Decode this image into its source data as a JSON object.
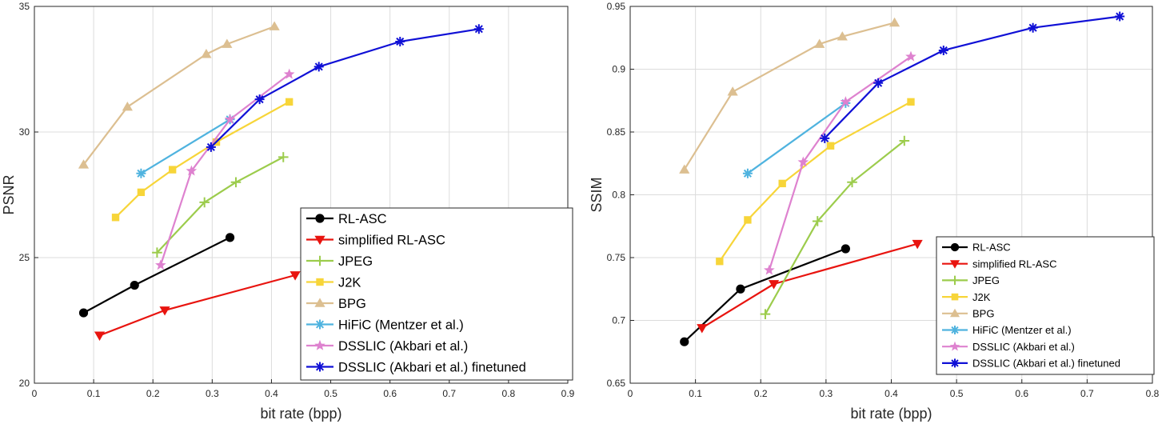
{
  "colors": {
    "RL-ASC": "#000000",
    "simplified RL-ASC": "#e8140f",
    "JPEG": "#9ccc4c",
    "J2K": "#f7d539",
    "BPG": "#dcbf91",
    "HiFiC": "#4fb3df",
    "DSSLIC": "#de82cf",
    "DSSLIC finetuned": "#1010d6",
    "grid": "#dcdcdc"
  },
  "chart_data": [
    {
      "type": "line",
      "xlabel": "bit rate (bpp)",
      "ylabel": "PSNR",
      "xlim": [
        0,
        0.9
      ],
      "ylim": [
        20,
        35
      ],
      "xticks": [
        "0",
        "0.1",
        "0.2",
        "0.3",
        "0.4",
        "0.5",
        "0.6",
        "0.7",
        "0.8",
        "0.9"
      ],
      "yticks": [
        "20",
        "25",
        "30",
        "35"
      ],
      "grid": true,
      "legend_position": "bottom-right",
      "series": [
        {
          "name": "RL-ASC",
          "marker": "circle",
          "x": [
            0.083,
            0.169,
            0.33
          ],
          "y": [
            22.8,
            23.9,
            25.8
          ]
        },
        {
          "name": "simplified RL-ASC",
          "marker": "triangle-down",
          "x": [
            0.11,
            0.22,
            0.44
          ],
          "y": [
            21.9,
            22.9,
            24.3
          ]
        },
        {
          "name": "JPEG",
          "marker": "plus",
          "x": [
            0.207,
            0.287,
            0.34,
            0.42
          ],
          "y": [
            25.2,
            27.2,
            28.0,
            29.0
          ]
        },
        {
          "name": "J2K",
          "marker": "square",
          "x": [
            0.137,
            0.18,
            0.233,
            0.307,
            0.43
          ],
          "y": [
            26.6,
            27.6,
            28.5,
            29.6,
            31.2
          ]
        },
        {
          "name": "BPG",
          "marker": "triangle-up",
          "x": [
            0.083,
            0.157,
            0.29,
            0.325,
            0.405
          ],
          "y": [
            28.7,
            31.0,
            33.1,
            33.5,
            34.2
          ]
        },
        {
          "name": "HiFiC (Mentzer et al.)",
          "marker": "asterisk",
          "x": [
            0.18,
            0.33
          ],
          "y": [
            28.35,
            30.5
          ]
        },
        {
          "name": "DSSLIC (Akbari et al.)",
          "marker": "star",
          "x": [
            0.213,
            0.265,
            0.33,
            0.43
          ],
          "y": [
            24.7,
            28.45,
            30.5,
            32.3
          ]
        },
        {
          "name": "DSSLIC (Akbari et al.) finetuned",
          "marker": "asterisk",
          "x": [
            0.298,
            0.38,
            0.48,
            0.617,
            0.75
          ],
          "y": [
            29.4,
            31.3,
            32.6,
            33.6,
            34.1
          ]
        }
      ]
    },
    {
      "type": "line",
      "xlabel": "bit rate (bpp)",
      "ylabel": "SSIM",
      "xlim": [
        0,
        0.8
      ],
      "ylim": [
        0.65,
        0.95
      ],
      "xticks": [
        "0",
        "0.1",
        "0.2",
        "0.3",
        "0.4",
        "0.5",
        "0.6",
        "0.7",
        "0.8"
      ],
      "yticks": [
        "0.65",
        "0.7",
        "0.75",
        "0.8",
        "0.85",
        "0.9",
        "0.95"
      ],
      "grid": true,
      "legend_position": "bottom-right",
      "series": [
        {
          "name": "RL-ASC",
          "marker": "circle",
          "x": [
            0.083,
            0.169,
            0.33
          ],
          "y": [
            0.683,
            0.725,
            0.757
          ]
        },
        {
          "name": "simplified RL-ASC",
          "marker": "triangle-down",
          "x": [
            0.11,
            0.22,
            0.44
          ],
          "y": [
            0.694,
            0.729,
            0.761
          ]
        },
        {
          "name": "JPEG",
          "marker": "plus",
          "x": [
            0.207,
            0.287,
            0.34,
            0.42
          ],
          "y": [
            0.705,
            0.779,
            0.81,
            0.843
          ]
        },
        {
          "name": "J2K",
          "marker": "square",
          "x": [
            0.137,
            0.18,
            0.233,
            0.307,
            0.43
          ],
          "y": [
            0.747,
            0.78,
            0.809,
            0.839,
            0.874
          ]
        },
        {
          "name": "BPG",
          "marker": "triangle-up",
          "x": [
            0.083,
            0.157,
            0.29,
            0.325,
            0.405
          ],
          "y": [
            0.82,
            0.882,
            0.92,
            0.926,
            0.937
          ]
        },
        {
          "name": "HiFiC (Mentzer et al.)",
          "marker": "asterisk",
          "x": [
            0.18,
            0.33
          ],
          "y": [
            0.817,
            0.873
          ]
        },
        {
          "name": "DSSLIC (Akbari et al.)",
          "marker": "star",
          "x": [
            0.213,
            0.265,
            0.33,
            0.43
          ],
          "y": [
            0.74,
            0.826,
            0.874,
            0.91
          ]
        },
        {
          "name": "DSSLIC (Akbari et al.) finetuned",
          "marker": "asterisk",
          "x": [
            0.298,
            0.38,
            0.48,
            0.617,
            0.75
          ],
          "y": [
            0.845,
            0.889,
            0.915,
            0.933,
            0.942
          ]
        }
      ]
    }
  ]
}
